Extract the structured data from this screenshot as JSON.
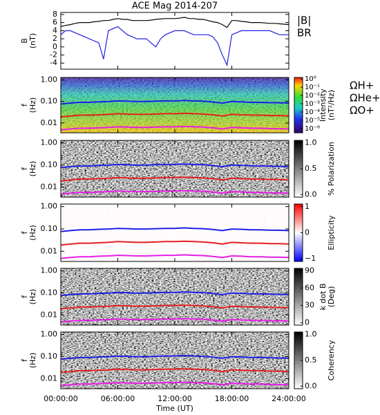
{
  "chart_data": [
    {
      "type": "line",
      "title": "ACE Mag 2014-207",
      "ylabel": [
        "B",
        "(nT)"
      ],
      "ylim": [
        -5.5,
        8.5
      ],
      "yticks": [
        -4,
        -2,
        0,
        2,
        4,
        6,
        8
      ],
      "legend": "right",
      "x": [
        0,
        0.5,
        1,
        1.5,
        2,
        2.5,
        3,
        3.5,
        4,
        4.5,
        5,
        5.5,
        6,
        6.5,
        7,
        7.5,
        8,
        8.5,
        9,
        9.5,
        10,
        10.5,
        11,
        11.5,
        12,
        12.5,
        13,
        13.5,
        14,
        14.5,
        15,
        15.5,
        16,
        16.5,
        17,
        17.5,
        18,
        18.5,
        19,
        19.5,
        20,
        20.5,
        21,
        21.5,
        22,
        22.5,
        23,
        23.5,
        24
      ],
      "series": [
        {
          "name": "|B|",
          "color": "#000000",
          "values": [
            5.0,
            5.3,
            5.5,
            5.8,
            6.0,
            6.0,
            6.0,
            6.2,
            6.3,
            6.5,
            6.5,
            6.8,
            7.0,
            6.8,
            6.8,
            6.5,
            6.5,
            6.5,
            6.5,
            6.6,
            6.8,
            6.9,
            7.0,
            7.0,
            7.0,
            7.1,
            7.3,
            7.0,
            7.0,
            6.8,
            6.8,
            6.5,
            6.2,
            6.0,
            5.5,
            4.8,
            6.5,
            6.5,
            6.3,
            6.2,
            6.0,
            6.0,
            6.0,
            5.9,
            5.8,
            5.8,
            5.7,
            5.6,
            5.5
          ]
        },
        {
          "name": "BR",
          "color": "#1e1ee6",
          "values": [
            3.0,
            4.0,
            4.0,
            3.5,
            3.0,
            2.5,
            2.0,
            1.5,
            1.0,
            -3.0,
            4.0,
            4.5,
            5.0,
            4.0,
            3.0,
            2.5,
            2.0,
            2.0,
            2.0,
            1.0,
            0.0,
            2.0,
            3.0,
            3.5,
            4.0,
            4.0,
            4.0,
            3.5,
            3.0,
            3.0,
            3.0,
            3.0,
            2.5,
            1.0,
            -2.0,
            -4.5,
            3.0,
            3.5,
            4.0,
            4.0,
            4.0,
            4.0,
            4.0,
            4.0,
            4.0,
            3.5,
            3.0,
            3.0,
            3.0
          ]
        }
      ]
    },
    {
      "type": "spectrogram",
      "colormap": "rainbow",
      "ylabel": [
        "f",
        "(Hz)"
      ],
      "ylog": true,
      "ylim": [
        0.0035,
        1.3
      ],
      "yticks": [
        {
          "value": 1,
          "label": "1.00"
        },
        {
          "value": 0.1,
          "label": "0.10"
        },
        {
          "value": 0.01,
          "label": "0.01"
        }
      ],
      "colorbar_label": [
        "Intensity",
        "(nT²/Hz)"
      ],
      "clog": true,
      "clim": [
        3e-07,
        1.5
      ],
      "cticks": [
        {
          "value": 1,
          "label": "10⁰"
        },
        {
          "value": 0.1,
          "label": "10⁻¹"
        },
        {
          "value": 0.01,
          "label": "10⁻²"
        },
        {
          "value": 0.001,
          "label": "10⁻³"
        },
        {
          "value": 0.0001,
          "label": "10⁻⁴"
        },
        {
          "value": 1e-05,
          "label": "10⁻⁵"
        },
        {
          "value": 1e-06,
          "label": "10⁻⁶"
        }
      ],
      "legend": "right",
      "x": [
        0,
        1,
        2,
        3,
        4,
        5,
        6,
        7,
        8,
        9,
        10,
        11,
        12,
        13,
        14,
        15,
        16,
        17,
        18,
        19,
        20,
        21,
        22,
        23,
        24
      ],
      "series": [
        {
          "name": "ΩH+",
          "color": "#1e1ee6",
          "values": [
            0.076,
            0.084,
            0.091,
            0.091,
            0.096,
            0.099,
            0.106,
            0.103,
            0.099,
            0.099,
            0.103,
            0.106,
            0.106,
            0.111,
            0.106,
            0.103,
            0.094,
            0.084,
            0.099,
            0.096,
            0.091,
            0.091,
            0.088,
            0.087,
            0.084
          ]
        },
        {
          "name": "ΩHe+",
          "color": "#e61e1e",
          "values": [
            0.019,
            0.021,
            0.023,
            0.023,
            0.024,
            0.025,
            0.027,
            0.026,
            0.025,
            0.025,
            0.026,
            0.027,
            0.027,
            0.028,
            0.027,
            0.026,
            0.024,
            0.021,
            0.025,
            0.024,
            0.023,
            0.023,
            0.022,
            0.022,
            0.021
          ]
        },
        {
          "name": "ΩO+",
          "color": "#e61ee6",
          "values": [
            0.0048,
            0.0053,
            0.0057,
            0.0057,
            0.006,
            0.0062,
            0.0066,
            0.0064,
            0.0062,
            0.0062,
            0.0064,
            0.0066,
            0.0066,
            0.0069,
            0.0066,
            0.0064,
            0.0059,
            0.0053,
            0.0062,
            0.006,
            0.0057,
            0.0057,
            0.0055,
            0.0054,
            0.0053
          ]
        }
      ]
    },
    {
      "type": "spectrogram",
      "colormap": "gray",
      "ylabel": [
        "f",
        "(Hz)"
      ],
      "ylog": true,
      "ylim": [
        0.0035,
        1.3
      ],
      "yticks": [
        {
          "value": 1,
          "label": "1.00"
        },
        {
          "value": 0.1,
          "label": "0.10"
        },
        {
          "value": 0.01,
          "label": "0.01"
        }
      ],
      "colorbar_label": [
        "% Polarization"
      ],
      "clim": [
        -0.05,
        1.05
      ],
      "cticks": [
        {
          "value": 1,
          "label": "1.0"
        },
        {
          "value": 0.5,
          "label": "0.5"
        },
        {
          "value": 0,
          "label": "0.0"
        }
      ],
      "x": [
        0,
        1,
        2,
        3,
        4,
        5,
        6,
        7,
        8,
        9,
        10,
        11,
        12,
        13,
        14,
        15,
        16,
        17,
        18,
        19,
        20,
        21,
        22,
        23,
        24
      ],
      "series": [
        {
          "color": "#1e1ee6",
          "values": [
            0.076,
            0.084,
            0.091,
            0.091,
            0.096,
            0.099,
            0.106,
            0.103,
            0.099,
            0.099,
            0.103,
            0.106,
            0.106,
            0.111,
            0.106,
            0.103,
            0.094,
            0.084,
            0.099,
            0.096,
            0.091,
            0.091,
            0.088,
            0.087,
            0.084
          ]
        },
        {
          "color": "#e61e1e",
          "values": [
            0.019,
            0.021,
            0.023,
            0.023,
            0.024,
            0.025,
            0.027,
            0.026,
            0.025,
            0.025,
            0.026,
            0.027,
            0.027,
            0.028,
            0.027,
            0.026,
            0.024,
            0.021,
            0.025,
            0.024,
            0.023,
            0.023,
            0.022,
            0.022,
            0.021
          ]
        },
        {
          "color": "#e61ee6",
          "values": [
            0.0048,
            0.0053,
            0.0057,
            0.0057,
            0.006,
            0.0062,
            0.0066,
            0.0064,
            0.0062,
            0.0062,
            0.0064,
            0.0066,
            0.0066,
            0.0069,
            0.0066,
            0.0064,
            0.0059,
            0.0053,
            0.0062,
            0.006,
            0.0057,
            0.0057,
            0.0055,
            0.0054,
            0.0053
          ]
        }
      ]
    },
    {
      "type": "spectrogram",
      "colormap": "bwr",
      "ylabel": [
        "f",
        "(Hz)"
      ],
      "ylog": true,
      "ylim": [
        0.0035,
        1.3
      ],
      "yticks": [
        {
          "value": 1,
          "label": "1.00"
        },
        {
          "value": 0.1,
          "label": "0.10"
        },
        {
          "value": 0.01,
          "label": "0.01"
        }
      ],
      "colorbar_label": [
        "Ellipticity"
      ],
      "clim": [
        -1.1,
        1.1
      ],
      "cticks": [
        1,
        0,
        {
          "value": -1,
          "label": "−1"
        }
      ],
      "x": [
        0,
        1,
        2,
        3,
        4,
        5,
        6,
        7,
        8,
        9,
        10,
        11,
        12,
        13,
        14,
        15,
        16,
        17,
        18,
        19,
        20,
        21,
        22,
        23,
        24
      ],
      "series": [
        {
          "color": "#1e1ee6",
          "values": [
            0.076,
            0.084,
            0.091,
            0.091,
            0.096,
            0.099,
            0.106,
            0.103,
            0.099,
            0.099,
            0.103,
            0.106,
            0.106,
            0.111,
            0.106,
            0.103,
            0.094,
            0.084,
            0.099,
            0.096,
            0.091,
            0.091,
            0.088,
            0.087,
            0.084
          ]
        },
        {
          "color": "#e61e1e",
          "values": [
            0.019,
            0.021,
            0.023,
            0.023,
            0.024,
            0.025,
            0.027,
            0.026,
            0.025,
            0.025,
            0.026,
            0.027,
            0.027,
            0.028,
            0.027,
            0.026,
            0.024,
            0.021,
            0.025,
            0.024,
            0.023,
            0.023,
            0.022,
            0.022,
            0.021
          ]
        },
        {
          "color": "#e61ee6",
          "values": [
            0.0048,
            0.0053,
            0.0057,
            0.0057,
            0.006,
            0.0062,
            0.0066,
            0.0064,
            0.0062,
            0.0062,
            0.0064,
            0.0066,
            0.0066,
            0.0069,
            0.0066,
            0.0064,
            0.0059,
            0.0053,
            0.0062,
            0.006,
            0.0057,
            0.0057,
            0.0055,
            0.0054,
            0.0053
          ]
        }
      ]
    },
    {
      "type": "spectrogram",
      "colormap": "gray",
      "ylabel": [
        "f",
        "(Hz)"
      ],
      "ylog": true,
      "ylim": [
        0.0035,
        1.3
      ],
      "yticks": [
        {
          "value": 1,
          "label": "1.00"
        },
        {
          "value": 0.1,
          "label": "0.10"
        },
        {
          "value": 0.01,
          "label": "0.01"
        }
      ],
      "colorbar_label": [
        "k dot B",
        "(Deg)"
      ],
      "clim": [
        -4,
        94
      ],
      "cticks": [
        90,
        60,
        30,
        0
      ],
      "x": [
        0,
        1,
        2,
        3,
        4,
        5,
        6,
        7,
        8,
        9,
        10,
        11,
        12,
        13,
        14,
        15,
        16,
        17,
        18,
        19,
        20,
        21,
        22,
        23,
        24
      ],
      "series": [
        {
          "color": "#1e1ee6",
          "values": [
            0.076,
            0.084,
            0.091,
            0.091,
            0.096,
            0.099,
            0.106,
            0.103,
            0.099,
            0.099,
            0.103,
            0.106,
            0.106,
            0.111,
            0.106,
            0.103,
            0.094,
            0.084,
            0.099,
            0.096,
            0.091,
            0.091,
            0.088,
            0.087,
            0.084
          ]
        },
        {
          "color": "#e61e1e",
          "values": [
            0.019,
            0.021,
            0.023,
            0.023,
            0.024,
            0.025,
            0.027,
            0.026,
            0.025,
            0.025,
            0.026,
            0.027,
            0.027,
            0.028,
            0.027,
            0.026,
            0.024,
            0.021,
            0.025,
            0.024,
            0.023,
            0.023,
            0.022,
            0.022,
            0.021
          ]
        },
        {
          "color": "#e61ee6",
          "values": [
            0.0048,
            0.0053,
            0.0057,
            0.0057,
            0.006,
            0.0062,
            0.0066,
            0.0064,
            0.0062,
            0.0062,
            0.0064,
            0.0066,
            0.0066,
            0.0069,
            0.0066,
            0.0064,
            0.0059,
            0.0053,
            0.0062,
            0.006,
            0.0057,
            0.0057,
            0.0055,
            0.0054,
            0.0053
          ]
        }
      ]
    },
    {
      "type": "spectrogram",
      "colormap": "gray",
      "ylabel": [
        "f",
        "(Hz)"
      ],
      "ylog": true,
      "ylim": [
        0.0035,
        1.3
      ],
      "yticks": [
        {
          "value": 1,
          "label": "1.00"
        },
        {
          "value": 0.1,
          "label": "0.10"
        },
        {
          "value": 0.01,
          "label": "0.01"
        }
      ],
      "colorbar_label": [
        "Coherency"
      ],
      "clim": [
        -0.05,
        1.05
      ],
      "cticks": [
        {
          "value": 1,
          "label": "1.0"
        },
        {
          "value": 0.5,
          "label": "0.5"
        },
        {
          "value": 0,
          "label": "0.0"
        }
      ],
      "xlabel": "Time (UT)",
      "xlim": [
        0,
        24
      ],
      "xticks": [
        {
          "value": 0,
          "label": "00:00:00"
        },
        {
          "value": 6,
          "label": "06:00:00"
        },
        {
          "value": 12,
          "label": "12:00:00"
        },
        {
          "value": 18,
          "label": "18:00:00"
        },
        {
          "value": 24,
          "label": "24:00:00"
        }
      ],
      "x": [
        0,
        1,
        2,
        3,
        4,
        5,
        6,
        7,
        8,
        9,
        10,
        11,
        12,
        13,
        14,
        15,
        16,
        17,
        18,
        19,
        20,
        21,
        22,
        23,
        24
      ],
      "series": [
        {
          "color": "#1e1ee6",
          "values": [
            0.076,
            0.084,
            0.091,
            0.091,
            0.096,
            0.099,
            0.106,
            0.103,
            0.099,
            0.099,
            0.103,
            0.106,
            0.106,
            0.111,
            0.106,
            0.103,
            0.094,
            0.084,
            0.099,
            0.096,
            0.091,
            0.091,
            0.088,
            0.087,
            0.084
          ]
        },
        {
          "color": "#e61e1e",
          "values": [
            0.019,
            0.021,
            0.023,
            0.023,
            0.024,
            0.025,
            0.027,
            0.026,
            0.025,
            0.025,
            0.026,
            0.027,
            0.027,
            0.028,
            0.027,
            0.026,
            0.024,
            0.021,
            0.025,
            0.024,
            0.023,
            0.023,
            0.022,
            0.022,
            0.021
          ]
        },
        {
          "color": "#e61ee6",
          "values": [
            0.0048,
            0.0053,
            0.0057,
            0.0057,
            0.006,
            0.0062,
            0.0066,
            0.0064,
            0.0062,
            0.0062,
            0.0064,
            0.0066,
            0.0066,
            0.0069,
            0.0066,
            0.0064,
            0.0059,
            0.0053,
            0.0062,
            0.006,
            0.0057,
            0.0057,
            0.0055,
            0.0054,
            0.0053
          ]
        }
      ]
    }
  ]
}
